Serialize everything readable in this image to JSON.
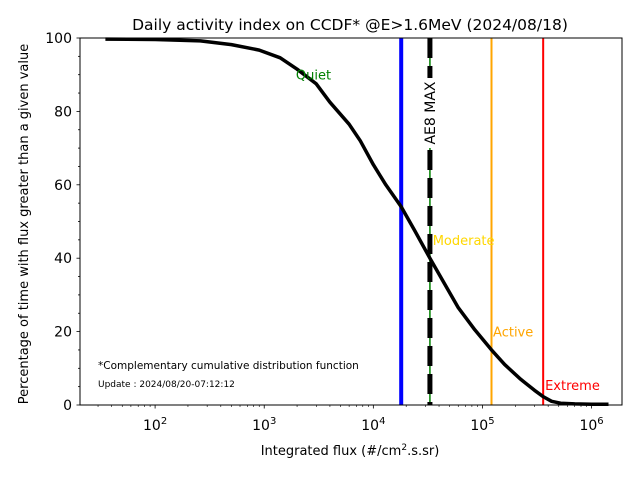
{
  "chart_data": {
    "type": "line",
    "title": "Daily activity index on CCDF* @E>1.6MeV (2024/08/18)",
    "xlabel_main": "Integrated flux (#/cm",
    "xlabel_sup": "2",
    "xlabel_tail": ".s.sr)",
    "ylabel": "Percentage of time with flux greater than a given value",
    "xscale": "log",
    "xlim": [
      20.5,
      1900000
    ],
    "ylim": [
      0,
      100
    ],
    "grid": false,
    "x_ticks": [
      {
        "value": 100,
        "base": "10",
        "exp": "2"
      },
      {
        "value": 1000,
        "base": "10",
        "exp": "3"
      },
      {
        "value": 10000,
        "base": "10",
        "exp": "4"
      },
      {
        "value": 100000,
        "base": "10",
        "exp": "5"
      },
      {
        "value": 1000000,
        "base": "10",
        "exp": "6"
      }
    ],
    "y_ticks": [
      0,
      20,
      40,
      60,
      80,
      100
    ],
    "y_tick_labels": [
      "0",
      "20",
      "40",
      "60",
      "80",
      "100"
    ],
    "series": [
      {
        "name": "CCDF",
        "color": "#000000",
        "x": [
          35,
          100,
          260,
          500,
          900,
          1400,
          2000,
          3000,
          4000,
          6000,
          7600,
          10000,
          13000,
          18000,
          24000,
          33000,
          45000,
          60000,
          85000,
          121000,
          160000,
          224000,
          300000,
          363000,
          430000,
          520000,
          700000,
          1000000,
          1430000
        ],
        "y": [
          99.7,
          99.6,
          99.2,
          98.2,
          96.7,
          94.6,
          91.5,
          87.5,
          82.5,
          76.5,
          72.0,
          65.5,
          60.0,
          54.0,
          47.5,
          40.0,
          33.0,
          26.5,
          20.5,
          15.0,
          11.0,
          7.0,
          4.0,
          2.2,
          1.0,
          0.5,
          0.3,
          0.2,
          0.2
        ]
      }
    ],
    "vertical_lines": [
      {
        "name": "daily-index",
        "x": 18000,
        "color": "#0000ff",
        "style": "solid"
      },
      {
        "name": "ae8-max",
        "x": 33000,
        "color": "#000000",
        "style": "dashed",
        "under_color": "#008000",
        "label": "AE8 MAX"
      },
      {
        "name": "active-threshold",
        "x": 121000,
        "color": "#ffa500",
        "style": "solid"
      },
      {
        "name": "extreme-threshold",
        "x": 360000,
        "color": "#ff0000",
        "style": "solid"
      }
    ],
    "annotations": [
      {
        "name": "quiet-label",
        "text": "Quiet",
        "x": 1950,
        "y": 90,
        "color": "#008000"
      },
      {
        "name": "moderate-label",
        "text": "Moderate",
        "x": 35000,
        "y": 45,
        "color": "#ffd700"
      },
      {
        "name": "active-label",
        "text": "Active",
        "x": 125000,
        "y": 20,
        "color": "#ffa500"
      },
      {
        "name": "extreme-label",
        "text": "Extreme",
        "x": 375000,
        "y": 5.5,
        "color": "#ff0000"
      }
    ],
    "footnote": "*Complementary cumulative distribution function",
    "update": "Update : 2024/08/20-07:12:12"
  }
}
